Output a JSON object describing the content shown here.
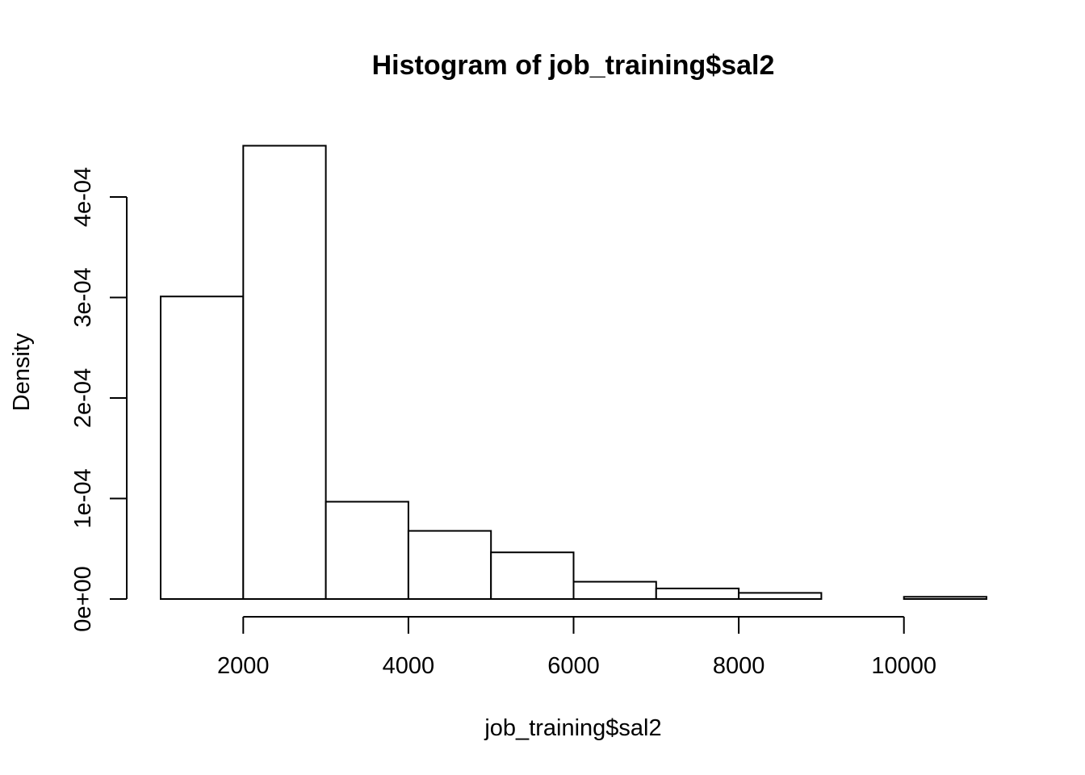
{
  "chart_data": {
    "type": "bar",
    "title": "Histogram of job_training$sal2",
    "xlabel": "job_training$sal2",
    "ylabel": "Density",
    "bins": [
      {
        "start": 1000,
        "end": 2000,
        "density": 0.000301
      },
      {
        "start": 2000,
        "end": 3000,
        "density": 0.000451
      },
      {
        "start": 3000,
        "end": 4000,
        "density": 9.68e-05
      },
      {
        "start": 4000,
        "end": 5000,
        "density": 6.78e-05
      },
      {
        "start": 5000,
        "end": 6000,
        "density": 4.64e-05
      },
      {
        "start": 6000,
        "end": 7000,
        "density": 1.72e-05
      },
      {
        "start": 7000,
        "end": 8000,
        "density": 1.05e-05
      },
      {
        "start": 8000,
        "end": 9000,
        "density": 6.1e-06
      },
      {
        "start": 9000,
        "end": 10000,
        "density": 0.0
      },
      {
        "start": 10000,
        "end": 11000,
        "density": 2.2e-06
      }
    ],
    "xlim": [
      1000,
      11000
    ],
    "ylim": [
      0,
      0.00045
    ],
    "x_ticks": [
      {
        "value": 2000,
        "label": "2000"
      },
      {
        "value": 4000,
        "label": "4000"
      },
      {
        "value": 6000,
        "label": "6000"
      },
      {
        "value": 8000,
        "label": "8000"
      },
      {
        "value": 10000,
        "label": "10000"
      }
    ],
    "y_ticks": [
      {
        "value": 0,
        "label": "0e+00"
      },
      {
        "value": 0.0001,
        "label": "1e-04"
      },
      {
        "value": 0.0002,
        "label": "2e-04"
      },
      {
        "value": 0.0003,
        "label": "3e-04"
      },
      {
        "value": 0.0004,
        "label": "4e-04"
      }
    ],
    "grid": false,
    "bar_fill": "#ffffff",
    "bar_stroke": "#000000"
  }
}
